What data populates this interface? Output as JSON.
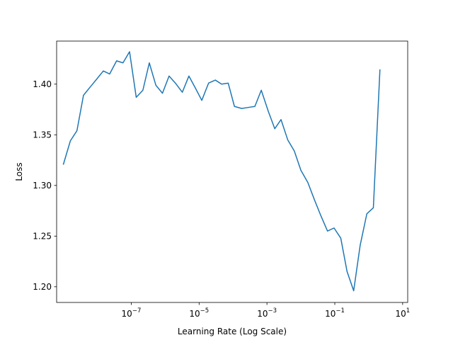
{
  "chart_data": {
    "type": "line",
    "title": "",
    "xlabel": "Learning Rate (Log Scale)",
    "ylabel": "Loss",
    "xscale": "log",
    "xlim": [
      6.3e-10,
      14.1
    ],
    "ylim": [
      1.1845,
      1.4425
    ],
    "xticks": [
      {
        "value": 1e-07,
        "base": "10",
        "exp": "−7"
      },
      {
        "value": 1e-05,
        "base": "10",
        "exp": "−5"
      },
      {
        "value": 0.001,
        "base": "10",
        "exp": "−3"
      },
      {
        "value": 0.1,
        "base": "10",
        "exp": "−1"
      },
      {
        "value": 10,
        "base": "10",
        "exp": "1"
      }
    ],
    "yticks": [
      {
        "value": 1.2,
        "label": "1.20"
      },
      {
        "value": 1.25,
        "label": "1.25"
      },
      {
        "value": 1.3,
        "label": "1.30"
      },
      {
        "value": 1.35,
        "label": "1.35"
      },
      {
        "value": 1.4,
        "label": "1.40"
      }
    ],
    "grid": false,
    "color": "#1f77b4",
    "series": [
      {
        "x": [
          1e-09,
          1.6e-09,
          2.5e-09,
          3.9e-09,
          6.1e-09,
          9.6e-09,
          1.5e-08,
          2.3e-08,
          3.7e-08,
          5.7e-08,
          8.9e-08,
          1.4e-07,
          2.2e-07,
          3.4e-07,
          5.3e-07,
          8.3e-07,
          1.3e-06,
          2e-06,
          3.2e-06,
          5e-06,
          7.8e-06,
          1.2e-05,
          1.9e-05,
          3e-05,
          4.6e-05,
          7.2e-05,
          0.00011,
          0.00018,
          0.00028,
          0.00044,
          0.00068,
          0.0011,
          0.0017,
          0.0026,
          0.0041,
          0.0064,
          0.01,
          0.016,
          0.025,
          0.039,
          0.061,
          0.095,
          0.15,
          0.23,
          0.36,
          0.56,
          0.88,
          1.37,
          2.14,
          3.35,
          5.22
        ],
        "y": [
          1.321,
          1.344,
          1.354,
          1.389,
          1.397,
          1.405,
          1.413,
          1.41,
          1.423,
          1.421,
          1.432,
          1.387,
          1.394,
          1.421,
          1.399,
          1.391,
          1.408,
          1.401,
          1.392,
          1.408,
          1.396,
          1.384,
          1.401,
          1.404,
          1.4,
          1.401,
          1.378,
          1.376,
          1.377,
          1.378,
          1.394,
          1.373,
          1.356,
          1.365,
          1.345,
          1.334,
          1.315,
          1.303,
          1.286,
          1.27,
          1.255,
          1.258,
          1.248,
          1.215,
          1.196,
          1.241,
          1.272,
          1.278,
          1.414,
          null,
          null
        ]
      }
    ]
  }
}
